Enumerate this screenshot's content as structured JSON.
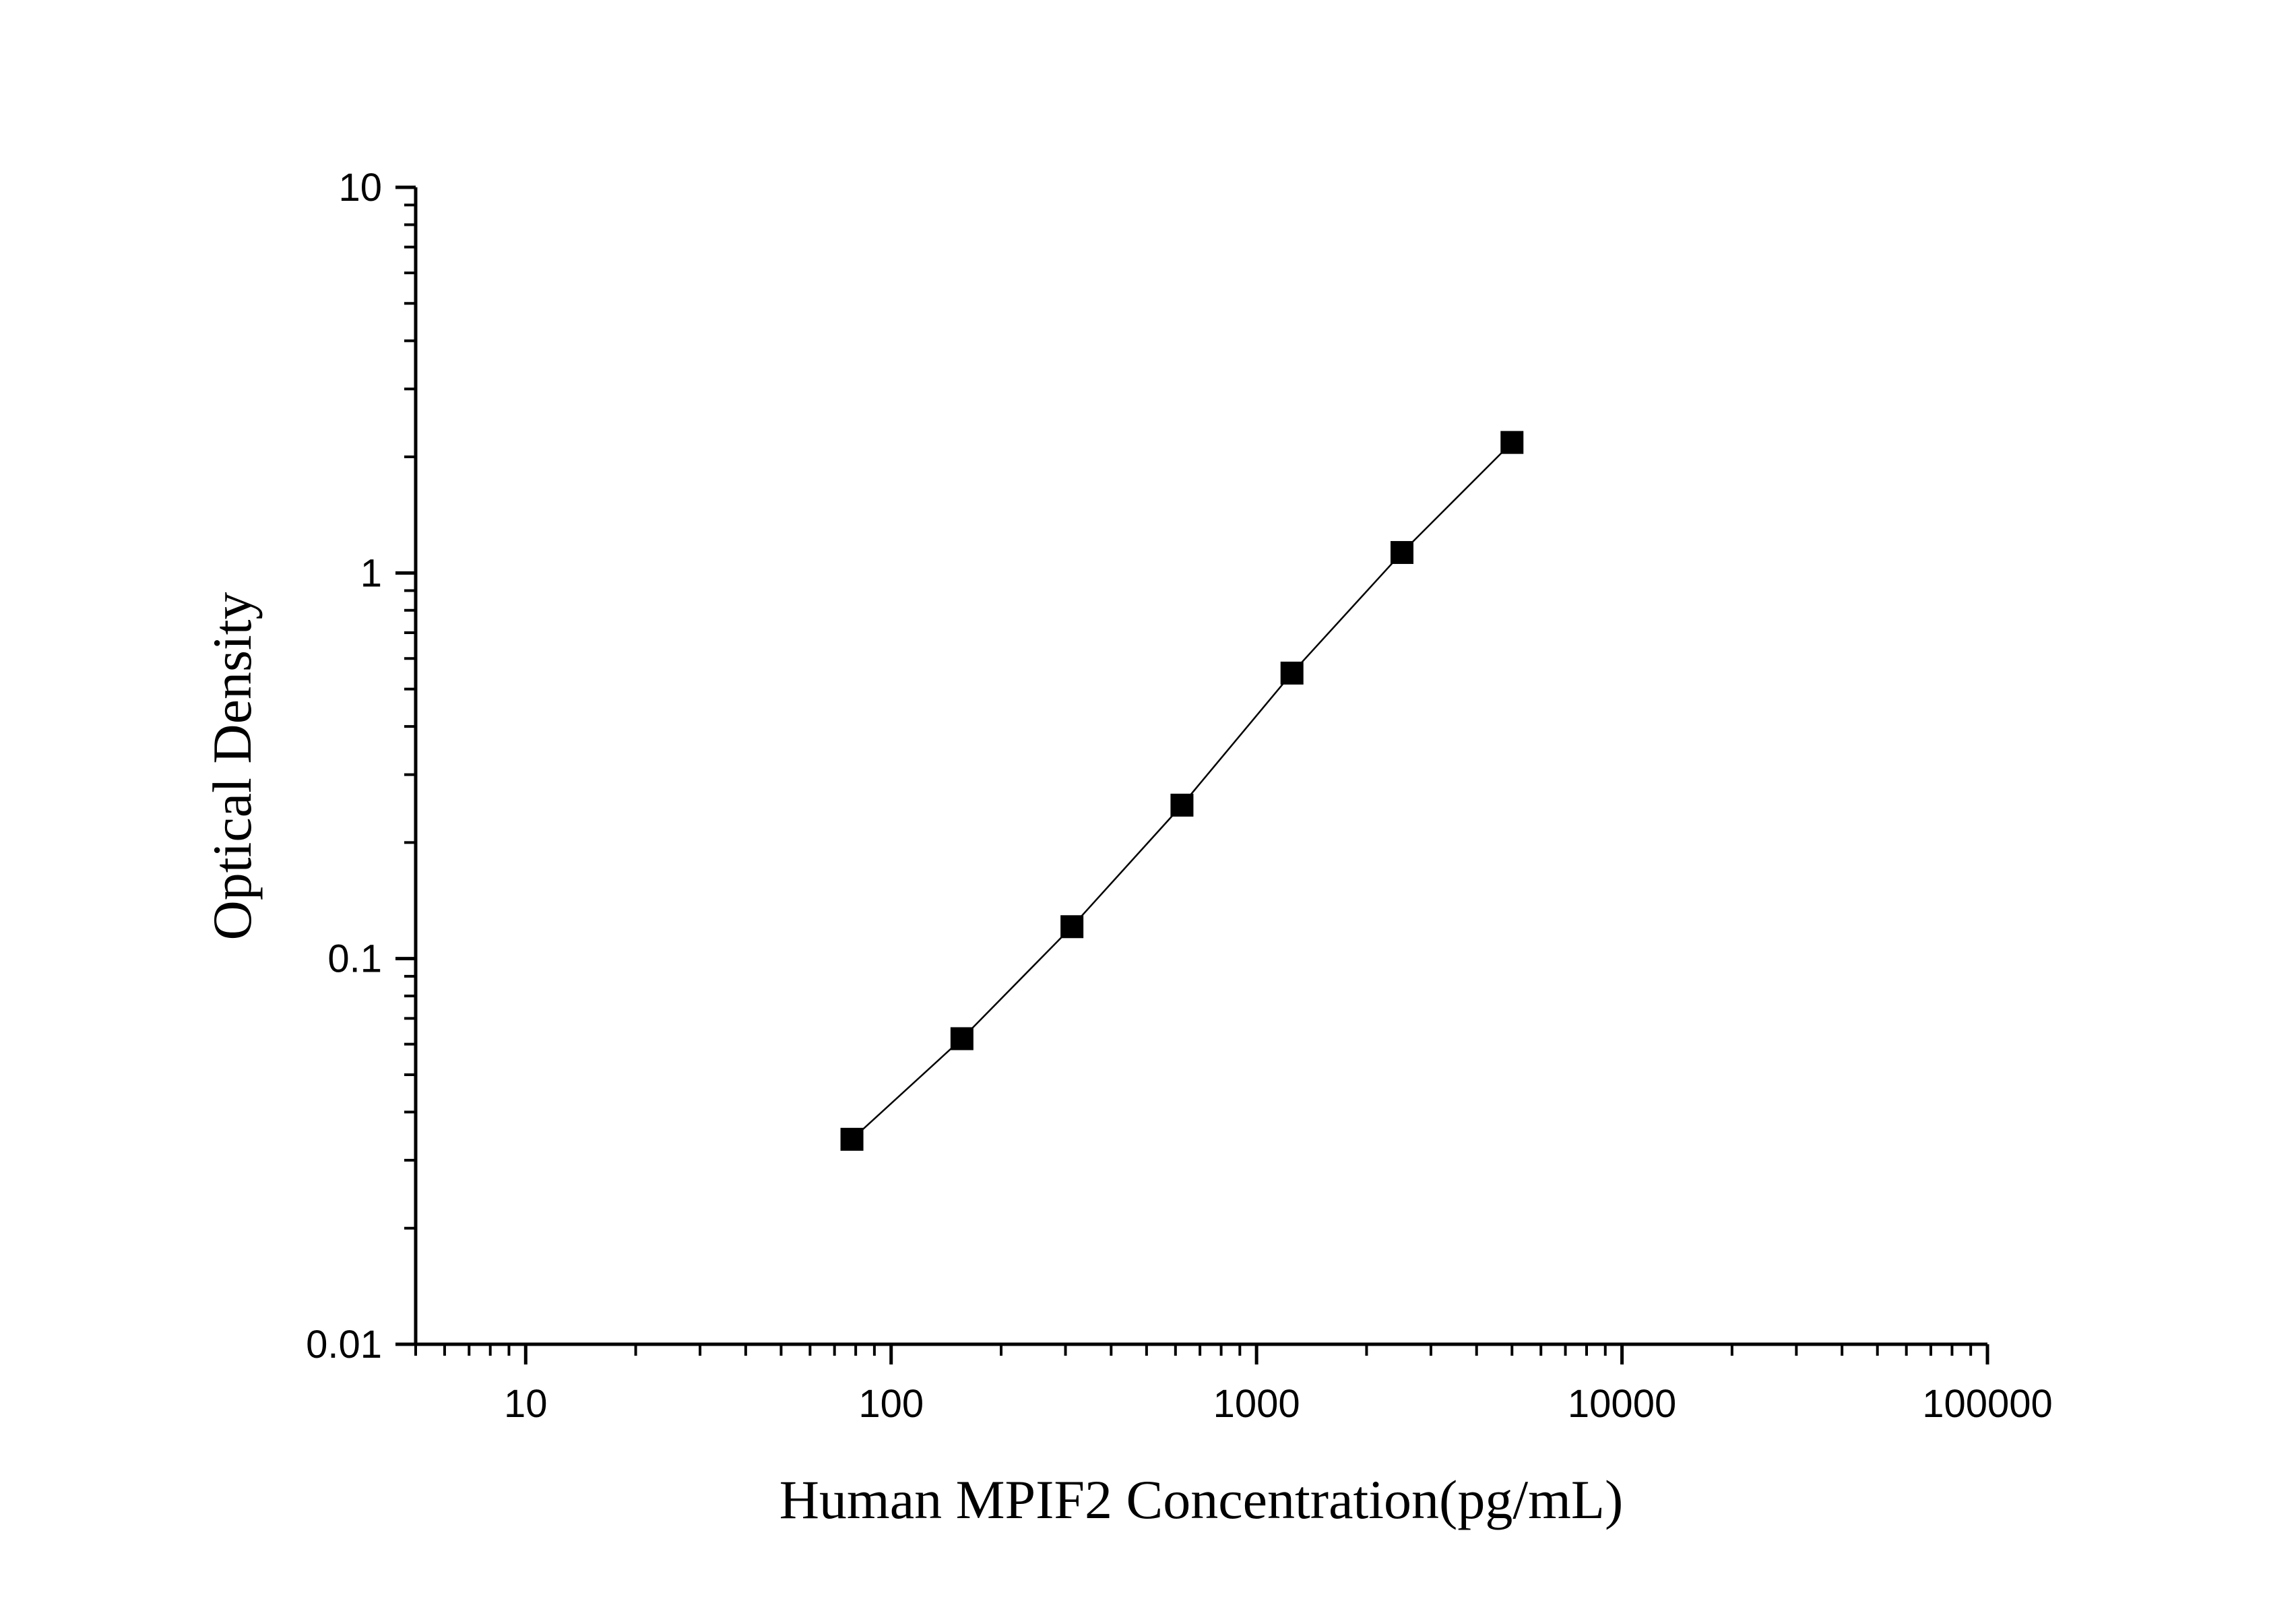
{
  "chart_data": {
    "type": "line",
    "xlabel": "Human MPIF2 Concentration(pg/mL)",
    "ylabel": "Optical Density",
    "x_scale": "log",
    "y_scale": "log",
    "xlim": [
      5,
      100000
    ],
    "ylim": [
      0.01,
      10
    ],
    "x_ticks": [
      {
        "value": 10,
        "label": "10"
      },
      {
        "value": 100,
        "label": "100"
      },
      {
        "value": 1000,
        "label": "1000"
      },
      {
        "value": 10000,
        "label": "10000"
      },
      {
        "value": 100000,
        "label": "100000"
      }
    ],
    "y_ticks": [
      {
        "value": 0.01,
        "label": "0.01"
      },
      {
        "value": 0.1,
        "label": "0.1"
      },
      {
        "value": 1,
        "label": "1"
      },
      {
        "value": 10,
        "label": "10"
      }
    ],
    "grid": false,
    "legend": "none",
    "marker": "square",
    "colors": {
      "line": "#000000",
      "marker": "#000000",
      "axis": "#000000"
    },
    "series": [
      {
        "x": [
          78.125,
          156.25,
          312.5,
          625,
          1250,
          2500,
          5000
        ],
        "y": [
          0.034,
          0.062,
          0.121,
          0.25,
          0.55,
          1.13,
          2.18
        ]
      }
    ]
  }
}
